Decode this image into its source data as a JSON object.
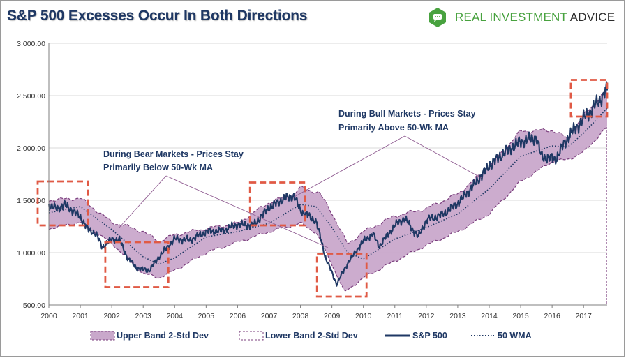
{
  "header": {
    "title": "S&P 500 Excesses Occur In Both Directions",
    "brand_green": "REAL INVESTMENT",
    "brand_dark": "ADVICE"
  },
  "colors": {
    "band_fill": "#c9a8cb",
    "band_edge": "#7b3f7e",
    "sp500": "#1f3864",
    "wma": "#1f3864",
    "box": "#e05a45",
    "brand_green": "#48a23f"
  },
  "chart_data": {
    "type": "line",
    "title": "S&P 500 Excesses Occur In Both Directions",
    "xlabel": "",
    "ylabel": "",
    "xlim": [
      2000,
      2017.75
    ],
    "ylim": [
      500,
      3000
    ],
    "x_ticks": [
      2000,
      2001,
      2002,
      2003,
      2004,
      2005,
      2006,
      2007,
      2008,
      2009,
      2010,
      2011,
      2012,
      2013,
      2014,
      2015,
      2016,
      2017
    ],
    "y_ticks": [
      500,
      1000,
      1500,
      2000,
      2500,
      3000
    ],
    "y_tick_labels": [
      "500.00",
      "1,000.00",
      "1,500.00",
      "2,000.00",
      "2,500.00",
      "3,000.00"
    ],
    "legend": [
      "Upper Band 2-Std Dev",
      "Lower Band 2-Std Dev",
      "S&P 500",
      "50 WMA"
    ],
    "series": [
      {
        "name": "S&P 500",
        "x": [
          2000,
          2000.25,
          2000.5,
          2000.75,
          2001,
          2001.25,
          2001.5,
          2001.7,
          2002,
          2002.25,
          2002.5,
          2002.8,
          2003.2,
          2003.5,
          2004,
          2004.5,
          2005,
          2005.5,
          2006,
          2006.5,
          2007,
          2007.5,
          2007.8,
          2008,
          2008.5,
          2008.8,
          2009.15,
          2009.5,
          2010,
          2010.3,
          2010.5,
          2011,
          2011.3,
          2011.75,
          2012,
          2012.5,
          2013,
          2013.5,
          2014,
          2014.5,
          2015,
          2015.5,
          2015.65,
          2016.1,
          2016.5,
          2017,
          2017.5,
          2017.75
        ],
        "values": [
          1450,
          1420,
          1460,
          1400,
          1340,
          1220,
          1180,
          1050,
          1130,
          1120,
          950,
          850,
          830,
          960,
          1130,
          1120,
          1200,
          1210,
          1270,
          1260,
          1430,
          1520,
          1540,
          1400,
          1300,
          950,
          700,
          900,
          1110,
          1180,
          1060,
          1260,
          1330,
          1150,
          1310,
          1360,
          1470,
          1640,
          1830,
          1960,
          2060,
          2100,
          1920,
          1890,
          2100,
          2280,
          2450,
          2560
        ]
      },
      {
        "name": "50 WMA",
        "x": [
          2000,
          2001,
          2002,
          2003,
          2003.5,
          2004,
          2005,
          2006,
          2007,
          2008,
          2008.5,
          2009,
          2009.5,
          2010,
          2011,
          2012,
          2013,
          2014,
          2015,
          2016,
          2016.5,
          2017,
          2017.75
        ],
        "values": [
          1380,
          1440,
          1220,
          960,
          890,
          950,
          1150,
          1200,
          1280,
          1460,
          1440,
          1240,
          1000,
          940,
          1130,
          1240,
          1370,
          1610,
          1920,
          2020,
          2010,
          2140,
          2380
        ]
      },
      {
        "name": "Upper Band 2-Std Dev",
        "x": [
          2000,
          2001,
          2002,
          2002.5,
          2003,
          2003.5,
          2004,
          2005,
          2006,
          2007,
          2007.8,
          2008,
          2008.6,
          2009,
          2009.5,
          2010,
          2011,
          2012,
          2013,
          2014,
          2015,
          2016,
          2016.5,
          2017,
          2017.75
        ],
        "values": [
          1500,
          1520,
          1290,
          1250,
          1200,
          1110,
          1170,
          1230,
          1280,
          1480,
          1560,
          1620,
          1570,
          1380,
          1080,
          1200,
          1350,
          1420,
          1560,
          1820,
          2160,
          2170,
          2090,
          2310,
          2560
        ]
      },
      {
        "name": "Lower Band 2-Std Dev",
        "x": [
          2000,
          2001,
          2002,
          2003,
          2003.5,
          2004,
          2005,
          2006,
          2007,
          2008,
          2008.5,
          2009,
          2009.4,
          2010,
          2011,
          2012,
          2013,
          2014,
          2015,
          2016,
          2016.5,
          2017,
          2017.75
        ],
        "values": [
          1230,
          1290,
          1090,
          800,
          760,
          830,
          1000,
          1100,
          1200,
          1280,
          1190,
          890,
          620,
          760,
          920,
          1070,
          1200,
          1370,
          1680,
          1870,
          1890,
          1960,
          2200
        ]
      }
    ],
    "annotations": [
      {
        "text": "During Bear Markets - Prices Stay",
        "text2": "Primarily Below 50-Wk MA"
      },
      {
        "text": "During Bull Markets - Prices Stay",
        "text2": "Primarily Above 50-Wk MA"
      }
    ],
    "highlight_regions": [
      {
        "x": [
          2000,
          2001.25
        ],
        "y": [
          1260,
          1680
        ]
      },
      {
        "x": [
          2002.15,
          2003.8
        ],
        "y": [
          670,
          1100
        ]
      },
      {
        "x": [
          2006.75,
          2008.15
        ],
        "y": [
          1260,
          1670
        ]
      },
      {
        "x": [
          2008.88,
          2010.1
        ],
        "y": [
          580,
          990
        ]
      },
      {
        "x": [
          2016.95,
          2017.75
        ],
        "y": [
          2300,
          2650
        ]
      }
    ]
  }
}
